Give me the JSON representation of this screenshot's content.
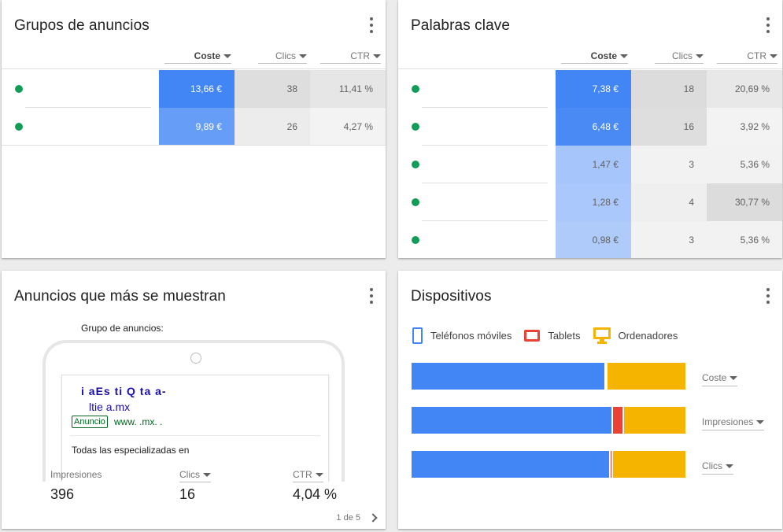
{
  "cards": {
    "ad_groups": {
      "title": "Grupos de anuncios",
      "columns": {
        "cost": "Coste",
        "clicks": "Clics",
        "ctr": "CTR"
      },
      "rows": [
        {
          "cost": "13,66 €",
          "clicks": "38",
          "ctr": "11,41 %"
        },
        {
          "cost": "9,89 €",
          "clicks": "26",
          "ctr": "4,27 %"
        }
      ]
    },
    "keywords": {
      "title": "Palabras clave",
      "columns": {
        "cost": "Coste",
        "clicks": "Clics",
        "ctr": "CTR"
      },
      "rows": [
        {
          "cost": "7,38 €",
          "clicks": "18",
          "ctr": "20,69 %"
        },
        {
          "cost": "6,48 €",
          "clicks": "16",
          "ctr": "3,92 %"
        },
        {
          "cost": "1,47 €",
          "clicks": "3",
          "ctr": "5,36 %"
        },
        {
          "cost": "1,28 €",
          "clicks": "4",
          "ctr": "30,77 %"
        },
        {
          "cost": "0,98 €",
          "clicks": "3",
          "ctr": "5,36 %"
        }
      ]
    },
    "top_ads": {
      "title": "Anuncios que más se muestran",
      "group_label": "Grupo de anuncios:",
      "ad": {
        "headline": "i    aEs  ti    Q     ta  a-",
        "headline2": "ltie          a.mx",
        "badge": "Anuncio",
        "url": "www.                    .mx.                                      .",
        "description": "Todas las              especializadas en"
      },
      "stats": [
        {
          "label": "Impresiones",
          "value": "396"
        },
        {
          "label": "Clics",
          "value": "16"
        },
        {
          "label": "CTR",
          "value": "4,04 %"
        }
      ],
      "pager": "1 de 5"
    },
    "devices": {
      "title": "Dispositivos",
      "legend": {
        "phones": "Teléfonos móviles",
        "tablets": "Tablets",
        "computers": "Ordenadores"
      },
      "colors": {
        "phones": "#4285f4",
        "tablets": "#ea4335",
        "computers": "#f4b400"
      },
      "bars": [
        {
          "metric": "Coste",
          "phones": 0.705,
          "tablets": 0.005,
          "computers": 0.29
        },
        {
          "metric": "Impresiones",
          "phones": 0.73,
          "tablets": 0.04,
          "computers": 0.23
        },
        {
          "metric": "Clics",
          "phones": 0.72,
          "tablets": 0.01,
          "computers": 0.27
        }
      ]
    }
  }
}
